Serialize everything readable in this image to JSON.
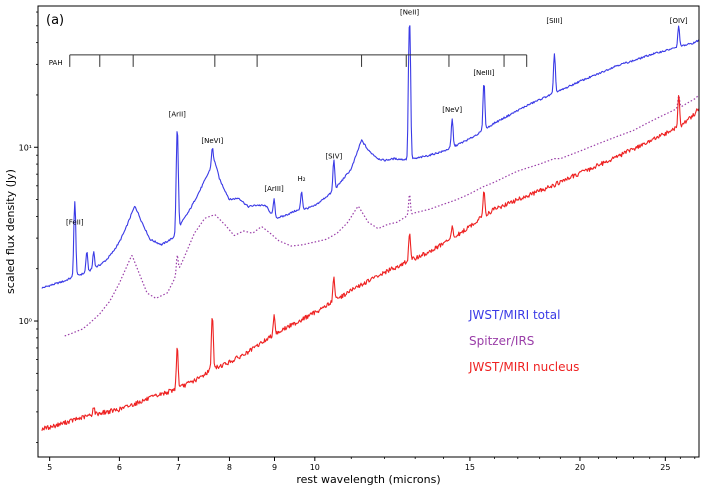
{
  "chart_data": {
    "type": "line",
    "panel_label": "(a)",
    "xlabel": "rest wavelength (microns)",
    "ylabel": "scaled flux density (Jy)",
    "xscale": "log",
    "yscale": "log",
    "xlim": [
      4.85,
      27.3
    ],
    "ylim": [
      0.165,
      65
    ],
    "grid": false,
    "legend_position": "lower-right",
    "xticks": [
      {
        "value": 5,
        "label": "5"
      },
      {
        "value": 6,
        "label": "6"
      },
      {
        "value": 7,
        "label": "7"
      },
      {
        "value": 8,
        "label": "8"
      },
      {
        "value": 9,
        "label": "9"
      },
      {
        "value": 10,
        "label": "10"
      },
      {
        "value": 15,
        "label": "15"
      },
      {
        "value": 20,
        "label": "20"
      },
      {
        "value": 25,
        "label": "25"
      }
    ],
    "yticks": [
      {
        "value": 1,
        "label": "10⁰"
      },
      {
        "value": 10,
        "label": "10¹"
      }
    ],
    "series": [
      {
        "name": "JWST/MIRI total",
        "color": "#3a3ae6",
        "style": "solid",
        "x": [
          4.9,
          5.0,
          5.2,
          5.3,
          5.5,
          5.6,
          5.7,
          5.8,
          5.9,
          6.0,
          6.1,
          6.2,
          6.25,
          6.35,
          6.5,
          6.7,
          6.9,
          7.0,
          7.2,
          7.4,
          7.6,
          7.7,
          7.8,
          8.0,
          8.2,
          8.4,
          8.6,
          8.8,
          9.0,
          9.2,
          9.5,
          9.8,
          10.0,
          10.5,
          11.0,
          11.3,
          11.5,
          11.8,
          12.0,
          12.3,
          12.6,
          13.0,
          13.5,
          14.0,
          14.5,
          15.0,
          15.5,
          16.0,
          16.5,
          17.0,
          17.5,
          18.0,
          18.5,
          19.0,
          20.0,
          21.0,
          22.0,
          23.0,
          24.0,
          25.0,
          26.0,
          27.0,
          27.3
        ],
        "y": [
          1.55,
          1.6,
          1.7,
          1.78,
          1.9,
          2.0,
          2.1,
          2.25,
          2.5,
          2.85,
          3.4,
          4.2,
          4.6,
          3.8,
          2.95,
          2.75,
          3.0,
          3.45,
          4.3,
          5.6,
          7.4,
          8.3,
          6.5,
          5.0,
          5.1,
          4.55,
          4.65,
          4.6,
          3.9,
          4.0,
          4.3,
          4.45,
          4.6,
          5.6,
          7.5,
          11.0,
          9.6,
          8.6,
          8.4,
          8.6,
          8.5,
          8.6,
          9.0,
          9.5,
          10.3,
          11.2,
          12.4,
          13.8,
          15.0,
          16.3,
          17.6,
          18.8,
          20.0,
          21.2,
          24.0,
          26.5,
          29.5,
          31.5,
          34.0,
          36.0,
          38.0,
          40.0,
          41.5
        ]
      },
      {
        "name": "Spitzer/IRS",
        "color": "#9a3ea8",
        "style": "dotted",
        "x": [
          5.2,
          5.3,
          5.45,
          5.55,
          5.7,
          5.85,
          6.0,
          6.1,
          6.2,
          6.3,
          6.45,
          6.6,
          6.8,
          6.95,
          7.1,
          7.3,
          7.5,
          7.7,
          7.9,
          8.1,
          8.3,
          8.5,
          8.7,
          8.9,
          9.1,
          9.4,
          9.7,
          10.0,
          10.3,
          10.6,
          10.9,
          11.2,
          11.5,
          11.8,
          12.1,
          12.4,
          12.7,
          13.0,
          13.5,
          14.0,
          14.5,
          15.0,
          15.5,
          16.0,
          16.5,
          17.0,
          18.0,
          18.7,
          19.0,
          20.0,
          21.0,
          22.0,
          23.0,
          24.0,
          25.0,
          26.0,
          27.0,
          27.3
        ],
        "y": [
          0.82,
          0.85,
          0.9,
          0.97,
          1.1,
          1.3,
          1.65,
          2.0,
          2.4,
          1.95,
          1.45,
          1.35,
          1.45,
          1.8,
          2.3,
          3.2,
          3.9,
          4.1,
          3.6,
          3.1,
          3.3,
          3.2,
          3.5,
          3.2,
          2.9,
          2.7,
          2.75,
          2.85,
          2.95,
          3.2,
          3.7,
          4.6,
          3.7,
          3.4,
          3.6,
          3.7,
          4.0,
          4.2,
          4.4,
          4.7,
          5.0,
          5.4,
          5.9,
          6.3,
          6.8,
          7.3,
          8.0,
          8.6,
          8.6,
          9.5,
          10.5,
          11.5,
          12.5,
          14.0,
          15.5,
          17.0,
          19.0,
          20.0
        ]
      },
      {
        "name": "JWST/MIRI nucleus",
        "color": "#ee2222",
        "style": "solid",
        "x": [
          4.9,
          5.0,
          5.2,
          5.4,
          5.6,
          5.8,
          6.0,
          6.2,
          6.4,
          6.6,
          6.8,
          7.0,
          7.2,
          7.4,
          7.6,
          7.8,
          8.0,
          8.2,
          8.4,
          8.6,
          8.8,
          9.0,
          9.3,
          9.6,
          10.0,
          10.5,
          11.0,
          11.5,
          12.0,
          12.5,
          13.0,
          13.5,
          14.0,
          14.5,
          15.0,
          15.5,
          16.0,
          17.0,
          18.0,
          19.0,
          20.0,
          21.0,
          22.0,
          23.0,
          24.0,
          25.0,
          26.0,
          27.0,
          27.3
        ],
        "y": [
          0.24,
          0.245,
          0.26,
          0.275,
          0.29,
          0.3,
          0.31,
          0.33,
          0.35,
          0.37,
          0.39,
          0.41,
          0.44,
          0.47,
          0.52,
          0.55,
          0.58,
          0.62,
          0.66,
          0.72,
          0.78,
          0.84,
          0.92,
          1.0,
          1.12,
          1.3,
          1.5,
          1.7,
          1.9,
          2.1,
          2.3,
          2.5,
          2.8,
          3.1,
          3.5,
          4.0,
          4.4,
          5.0,
          5.6,
          6.3,
          7.1,
          7.9,
          8.8,
          9.8,
          10.8,
          12.0,
          13.2,
          15.5,
          17.0
        ]
      }
    ],
    "emission_lines": [
      {
        "x": 5.34,
        "h": [
          3.05,
          0.0,
          0.0
        ]
      },
      {
        "x": 5.51,
        "h": [
          0.6,
          0.0,
          0.0
        ]
      },
      {
        "x": 5.61,
        "h": [
          0.5,
          0.0,
          0.03
        ]
      },
      {
        "x": 6.98,
        "h": [
          9.5,
          0.5,
          0.3
        ]
      },
      {
        "x": 7.65,
        "h": [
          2.1,
          0.0,
          0.55
        ]
      },
      {
        "x": 8.99,
        "h": [
          1.1,
          0.0,
          0.25
        ]
      },
      {
        "x": 9.66,
        "h": [
          1.2,
          0.0,
          0.0
        ]
      },
      {
        "x": 10.51,
        "h": [
          2.8,
          0.0,
          0.5
        ]
      },
      {
        "x": 12.81,
        "h": [
          45.0,
          1.3,
          1.0
        ]
      },
      {
        "x": 14.32,
        "h": [
          4.5,
          0.0,
          0.5
        ]
      },
      {
        "x": 15.56,
        "h": [
          11.0,
          0.0,
          1.6
        ]
      },
      {
        "x": 18.71,
        "h": [
          14.0,
          0.0,
          0.0
        ]
      },
      {
        "x": 25.89,
        "h": [
          12.0,
          3.0,
          7.0
        ]
      }
    ],
    "line_labels": [
      {
        "text": "[FeII]",
        "x": 5.34,
        "y": 3.6
      },
      {
        "text": "[ArII]",
        "x": 6.98,
        "y": 15.0
      },
      {
        "text": "[NeVI]",
        "x": 7.65,
        "y": 10.6
      },
      {
        "text": "[ArIII]",
        "x": 8.99,
        "y": 5.6
      },
      {
        "text": "H₂",
        "x": 9.66,
        "y": 6.4
      },
      {
        "text": "[SIV]",
        "x": 10.51,
        "y": 8.6
      },
      {
        "text": "[NeII]",
        "x": 12.81,
        "y": 58.0
      },
      {
        "text": "[NeV]",
        "x": 14.32,
        "y": 16.0
      },
      {
        "text": "[NeIII]",
        "x": 15.56,
        "y": 26.0
      },
      {
        "text": "[SIII]",
        "x": 18.71,
        "y": 52.0
      },
      {
        "text": "[OIV]",
        "x": 25.89,
        "y": 52.0
      }
    ],
    "pah": {
      "label": "PAH",
      "y": 34.0,
      "x_start": 5.27,
      "x_end": 17.4,
      "ticks": [
        5.27,
        5.7,
        6.22,
        7.7,
        8.6,
        11.3,
        12.7,
        14.2,
        16.4,
        17.4
      ]
    }
  }
}
